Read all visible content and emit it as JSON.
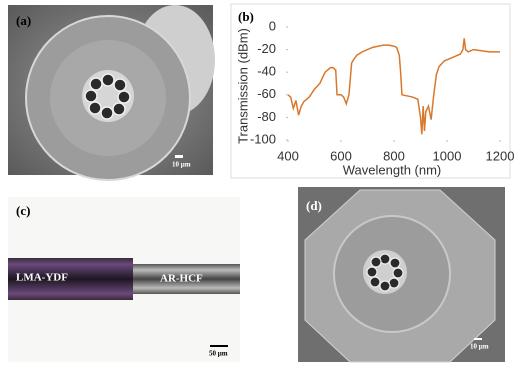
{
  "panels": [
    {
      "label": "(a)",
      "scale": "10 μm"
    },
    {
      "label": "(c)",
      "left": "LMA-YDF",
      "right": "AR-HCF",
      "scale": "50 μm"
    },
    {
      "label": "(d)",
      "scale": "10 μm"
    }
  ],
  "chart_data": {
    "type": "line",
    "panel_label": "(b)",
    "x_label": "Wavelength (nm)",
    "y_label": "Transmission (dBm)",
    "x": [
      400,
      410,
      420,
      430,
      440,
      450,
      460,
      480,
      500,
      520,
      540,
      560,
      570,
      580,
      585,
      600,
      610,
      620,
      625,
      630,
      640,
      650,
      660,
      680,
      700,
      720,
      740,
      760,
      780,
      800,
      810,
      820,
      825,
      830,
      850,
      870,
      890,
      900,
      905,
      910,
      915,
      920,
      930,
      940,
      950,
      960,
      970,
      990,
      1010,
      1030,
      1050,
      1060,
      1065,
      1070,
      1080,
      1100,
      1130,
      1160,
      1200
    ],
    "series": [
      {
        "color": "#d9782d",
        "values": [
          -60,
          -62,
          -72,
          -65,
          -78,
          -70,
          -66,
          -62,
          -55,
          -50,
          -40,
          -36,
          -36,
          -38,
          -60,
          -60,
          -62,
          -68,
          -64,
          -60,
          -32,
          -28,
          -25,
          -22,
          -20,
          -18,
          -17,
          -16,
          -16,
          -17,
          -18,
          -25,
          -40,
          -60,
          -61,
          -62,
          -64,
          -80,
          -95,
          -70,
          -92,
          -75,
          -70,
          -82,
          -60,
          -42,
          -35,
          -30,
          -28,
          -26,
          -24,
          -20,
          -10,
          -20,
          -22,
          -20,
          -21,
          -22,
          -22
        ]
      }
    ],
    "xlim": [
      400,
      1200
    ],
    "xticks": [
      400,
      600,
      800,
      1000,
      1200
    ],
    "ylim": [
      -100,
      0
    ],
    "yticks": [
      0,
      -20,
      -40,
      -60,
      -80,
      -100
    ],
    "grid": false
  }
}
